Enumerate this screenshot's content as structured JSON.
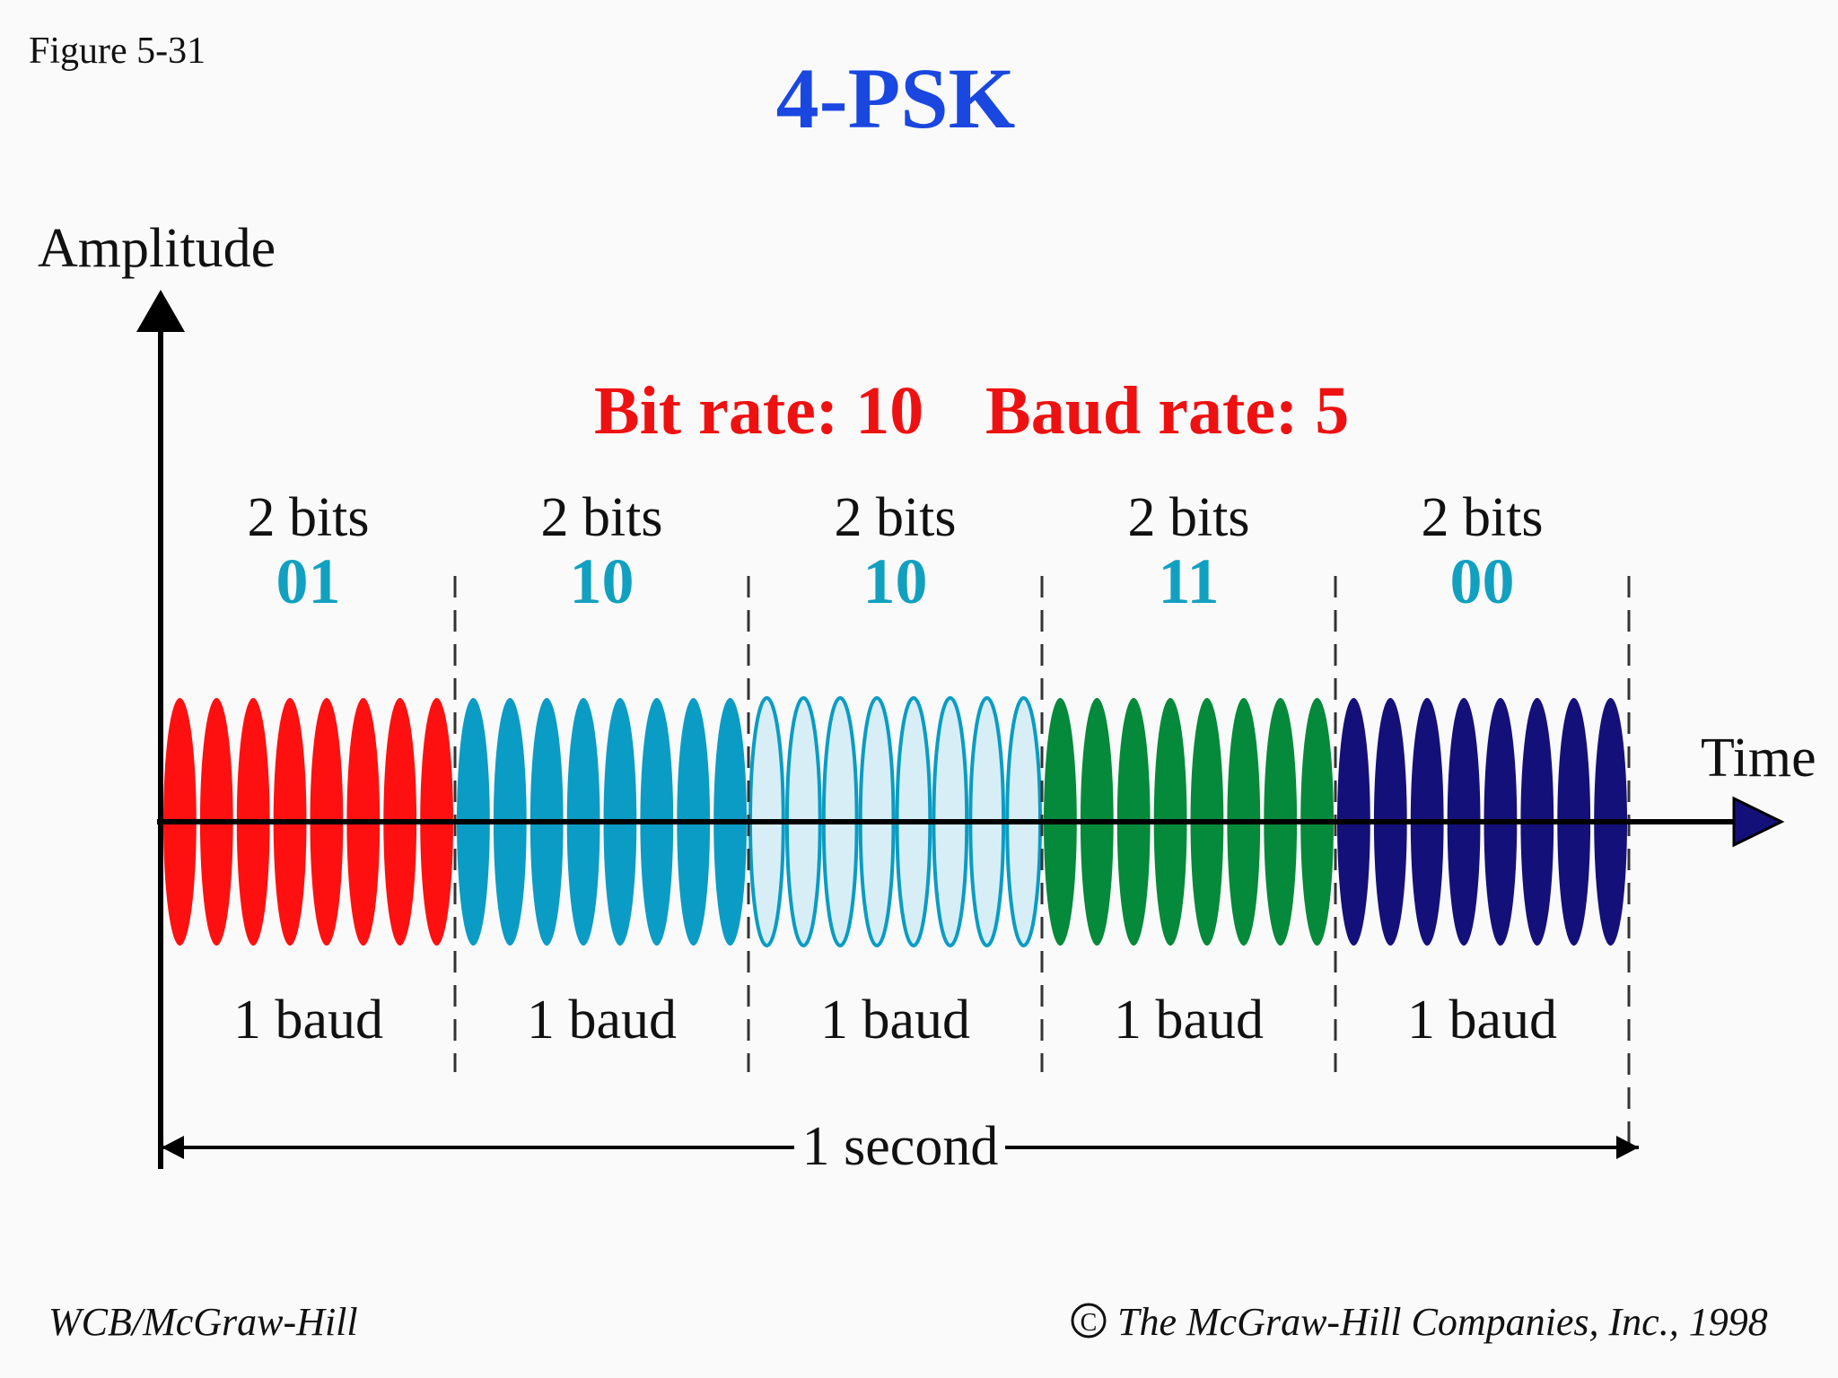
{
  "figure_label": "Figure 5-31",
  "title": "4-PSK",
  "axes": {
    "y_label": "Amplitude",
    "x_label": "Time"
  },
  "rates": {
    "bit_rate": "Bit rate: 10",
    "baud_rate": "Baud rate: 5"
  },
  "segments": [
    {
      "bits_label": "2 bits",
      "code": "01",
      "baud_label": "1 baud",
      "color": "#ff1010",
      "style": "filled"
    },
    {
      "bits_label": "2 bits",
      "code": "10",
      "baud_label": "1 baud",
      "color": "#0a9cc4",
      "style": "filled"
    },
    {
      "bits_label": "2 bits",
      "code": "10",
      "baud_label": "1 baud",
      "color": "#0a9cc4",
      "style": "outline"
    },
    {
      "bits_label": "2 bits",
      "code": "11",
      "baud_label": "1 baud",
      "color": "#05893a",
      "style": "filled"
    },
    {
      "bits_label": "2 bits",
      "code": "00",
      "baud_label": "1 baud",
      "color": "#14107a",
      "style": "filled"
    }
  ],
  "duration_label": "1 second",
  "footer": {
    "left": "WCB/McGraw-Hill",
    "right": "The McGraw-Hill Companies, Inc., 1998",
    "copyright_symbol": "©"
  }
}
